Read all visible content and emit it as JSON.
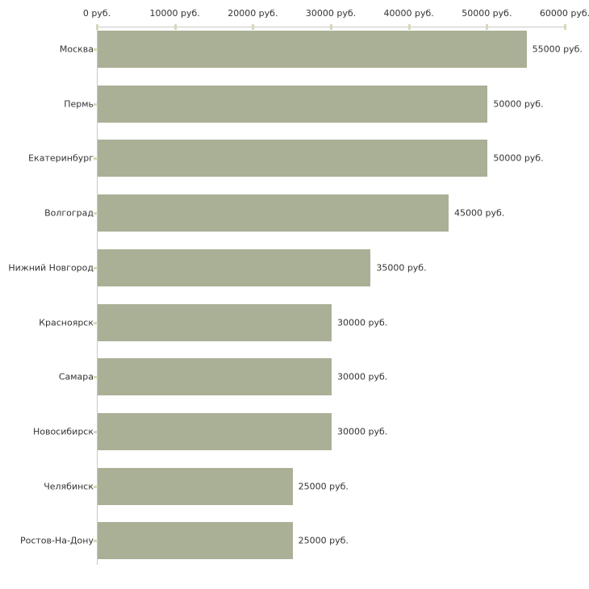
{
  "chart_data": {
    "type": "bar",
    "orientation": "horizontal",
    "title": "",
    "xlabel": "",
    "ylabel": "",
    "unit": "руб.",
    "categories": [
      "Москва",
      "Пермь",
      "Екатеринбург",
      "Волгоград",
      "Нижний Новгород",
      "Красноярск",
      "Самара",
      "Новосибирск",
      "Челябинск",
      "Ростов-На-Дону"
    ],
    "values": [
      55000,
      50000,
      50000,
      45000,
      35000,
      30000,
      30000,
      30000,
      25000,
      25000
    ],
    "value_labels": [
      "55000 руб.",
      "50000 руб.",
      "50000 руб.",
      "45000 руб.",
      "35000 руб.",
      "30000 руб.",
      "30000 руб.",
      "30000 руб.",
      "25000 руб.",
      "25000 руб."
    ],
    "x_axis": {
      "position": "top",
      "range": [
        0,
        60000
      ],
      "ticks": [
        0,
        10000,
        20000,
        30000,
        40000,
        50000,
        60000
      ],
      "tick_labels": [
        "0 руб.",
        "10000 руб.",
        "20000 руб.",
        "30000 руб.",
        "40000 руб.",
        "50000 руб.",
        "60000 руб."
      ]
    },
    "grid": false,
    "legend": false,
    "colors": {
      "bar_fill": "#a9b096",
      "axis_line": "#c9c9c9",
      "tick_mark": "#d6d8ba",
      "text": "#333333",
      "background": "#ffffff"
    }
  }
}
